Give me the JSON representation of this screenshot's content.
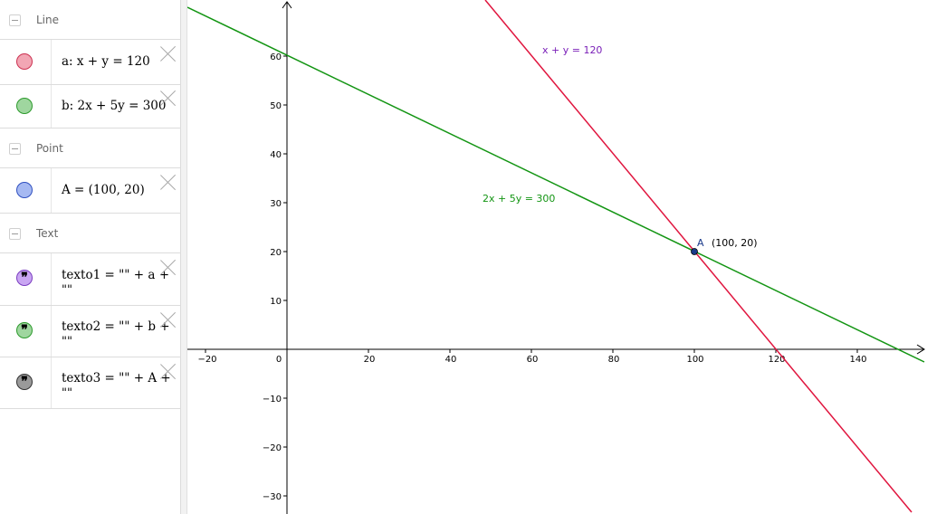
{
  "algebra": {
    "groups": [
      {
        "name": "Line",
        "items": [
          {
            "expr": "a: x + y = 120",
            "color": "#f2a6b4",
            "border": "#cc3050"
          },
          {
            "expr": "b: 2x + 5y = 300",
            "color": "#9fd69f",
            "border": "#2c9a2c"
          }
        ]
      },
      {
        "name": "Point",
        "items": [
          {
            "expr": "A = (100, 20)",
            "color": "#a6b9f2",
            "border": "#3050c0"
          }
        ]
      },
      {
        "name": "Text",
        "items": [
          {
            "expr": "texto1 = \"\" + a +",
            "cont": "\"\"",
            "color": "#c9a6f2",
            "border": "#7a3cc0"
          },
          {
            "expr": "texto2 = \"\" + b +",
            "cont": "\"\"",
            "color": "#9fd69f",
            "border": "#2c9a2c"
          },
          {
            "expr": "texto3 = \"\" + A +",
            "cont": "\"\"",
            "color": "#9a9a9a",
            "border": "#333333"
          }
        ]
      }
    ],
    "quote_glyph": "❞"
  },
  "graph": {
    "x_ticks": [
      "−20",
      "20",
      "40",
      "60",
      "80",
      "100",
      "120",
      "140"
    ],
    "origin_label": "0",
    "y_ticks": [
      "60",
      "50",
      "40",
      "30",
      "20",
      "10",
      "−10",
      "−20",
      "−30"
    ],
    "line_a_label": "x + y = 120",
    "line_b_label": "2x + 5y = 300",
    "point_name": "A",
    "point_coords": "(100, 20)",
    "colors": {
      "line_a": "#e0163f",
      "line_b": "#139513",
      "label_a": "#7a1fb8",
      "point": "#1a3a8a"
    }
  }
}
